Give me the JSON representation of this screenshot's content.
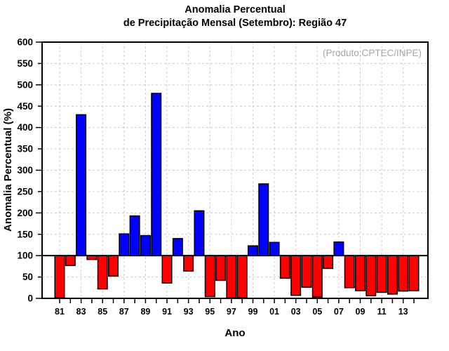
{
  "header": {
    "title_line1": "Anomalia Percentual",
    "title_line2": "de Precipitação Mensal (Setembro): Região 47"
  },
  "annotation": "(Produto:CPTEC/INPE)",
  "chart_data": {
    "type": "bar",
    "title": "Anomalia Percentual de Precipitação Mensal (Setembro): Região 47",
    "xlabel": "Ano",
    "ylabel": "Anomalia Percentual (%)",
    "baseline": 100,
    "ylim": [
      0,
      600
    ],
    "ytick_step": 50,
    "grid": true,
    "xtick_label_every": 2,
    "categories": [
      "81",
      "82",
      "83",
      "84",
      "85",
      "86",
      "87",
      "88",
      "89",
      "90",
      "91",
      "92",
      "93",
      "94",
      "95",
      "96",
      "97",
      "98",
      "99",
      "00",
      "01",
      "02",
      "03",
      "04",
      "05",
      "06",
      "07",
      "08",
      "09",
      "10",
      "11",
      "12",
      "13",
      "14"
    ],
    "values": [
      2,
      77,
      430,
      91,
      22,
      52,
      151,
      193,
      147,
      480,
      36,
      140,
      64,
      205,
      4,
      42,
      1,
      2,
      123,
      268,
      131,
      47,
      7,
      26,
      3,
      70,
      132,
      25,
      18,
      6,
      14,
      10,
      17,
      18
    ],
    "colors": {
      "above_baseline": "#0000ff",
      "below_baseline": "#ff0000",
      "bar_outline": "#000000",
      "axis": "#000000",
      "grid": "#cccccc",
      "annotation": "#a6a6a6"
    }
  }
}
